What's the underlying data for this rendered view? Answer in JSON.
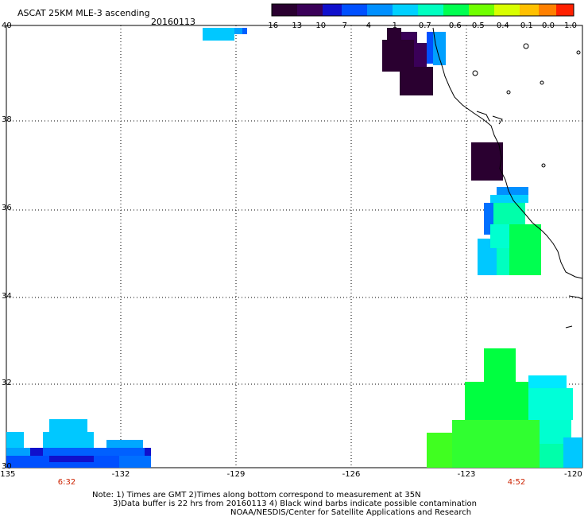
{
  "title": "ASCAT 25KM MLE-3 ascending",
  "date": "20160113",
  "colorbar": {
    "labels": [
      "-16",
      "-13",
      "-10",
      "-7",
      "-4",
      "-1",
      "-0.7",
      "-0.6",
      "-0.5",
      "-0.4",
      "-0.1",
      "0.0",
      "1.0"
    ],
    "colors": [
      "#2a0030",
      "#3a0058",
      "#1010cc",
      "#0060ff",
      "#00a0ff",
      "#00e0ff",
      "#00ffaa",
      "#00ff40",
      "#60ff00",
      "#c0ff00",
      "#ffd000",
      "#ff8000",
      "#ff2000"
    ]
  },
  "lat_labels": [
    "40",
    "38",
    "36",
    "34",
    "32",
    "30"
  ],
  "lon_labels": [
    "-135",
    "-132",
    "-129",
    "-126",
    "-123",
    "-120"
  ],
  "pass_times": [
    "6:32",
    "4:52"
  ],
  "notes": [
    "Note: 1) Times are GMT 2)Times along bottom correspond to measurement at 35N",
    "3)Data buffer is 22 hrs from 20160113 4) Black wind barbs indicate possible contamination",
    "NOAA/NESDIS/Center for Satellite Applications and Research"
  ]
}
